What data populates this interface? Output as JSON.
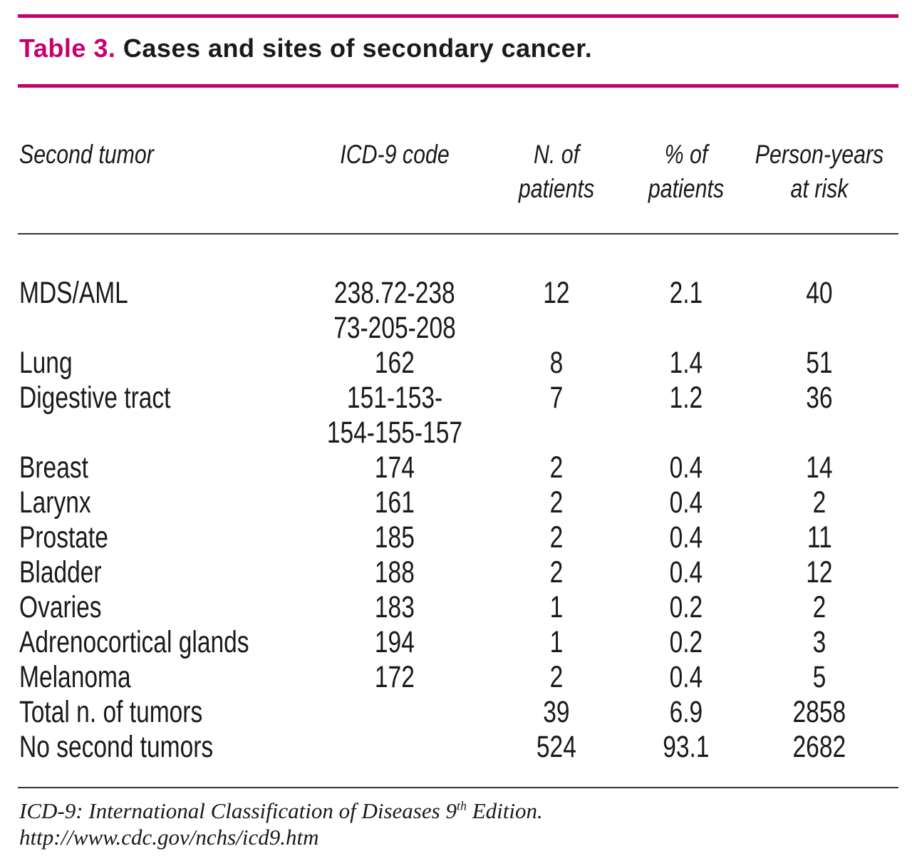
{
  "table": {
    "label": "Table 3.",
    "caption": "Cases and sites of secondary cancer.",
    "headers": {
      "second_tumor": "Second tumor",
      "icd9_code": "ICD-9 code",
      "n_patients_line1": "N. of",
      "n_patients_line2": "patients",
      "pct_patients_line1": "% of",
      "pct_patients_line2": "patients",
      "person_years_line1": "Person-years",
      "person_years_line2": "at risk"
    },
    "rows": [
      {
        "tumor": "MDS/AML",
        "icd": [
          "238.72-238",
          "73-205-208"
        ],
        "n": "12",
        "pct": "2.1",
        "py": "40"
      },
      {
        "tumor": "Lung",
        "icd": [
          "162"
        ],
        "n": "8",
        "pct": "1.4",
        "py": "51"
      },
      {
        "tumor": "Digestive tract",
        "icd": [
          "151-153-",
          "154-155-157"
        ],
        "n": "7",
        "pct": "1.2",
        "py": "36"
      },
      {
        "tumor": "Breast",
        "icd": [
          "174"
        ],
        "n": "2",
        "pct": "0.4",
        "py": "14"
      },
      {
        "tumor": "Larynx",
        "icd": [
          "161"
        ],
        "n": "2",
        "pct": "0.4",
        "py": "2"
      },
      {
        "tumor": "Prostate",
        "icd": [
          "185"
        ],
        "n": "2",
        "pct": "0.4",
        "py": "11"
      },
      {
        "tumor": "Bladder",
        "icd": [
          "188"
        ],
        "n": "2",
        "pct": "0.4",
        "py": "12"
      },
      {
        "tumor": "Ovaries",
        "icd": [
          "183"
        ],
        "n": "1",
        "pct": "0.2",
        "py": "2"
      },
      {
        "tumor": "Adrenocortical glands",
        "icd": [
          "194"
        ],
        "n": "1",
        "pct": "0.2",
        "py": "3"
      },
      {
        "tumor": "Melanoma",
        "icd": [
          "172"
        ],
        "n": "2",
        "pct": "0.4",
        "py": "5"
      },
      {
        "tumor": "Total n. of tumors",
        "icd": [],
        "n": "39",
        "pct": "6.9",
        "py": "2858"
      },
      {
        "tumor": "No second tumors",
        "icd": [],
        "n": "524",
        "pct": "93.1",
        "py": "2682"
      }
    ],
    "footnote": {
      "line1_before": "ICD-9: International Classification of Diseases 9",
      "line1_sup": "th",
      "line1_after": " Edition.",
      "line2": "http://www.cdc.gov/nchs/icd9.htm"
    }
  },
  "colors": {
    "accent": "#c8006e",
    "text": "#1a1a1a",
    "rule": "#333333"
  }
}
